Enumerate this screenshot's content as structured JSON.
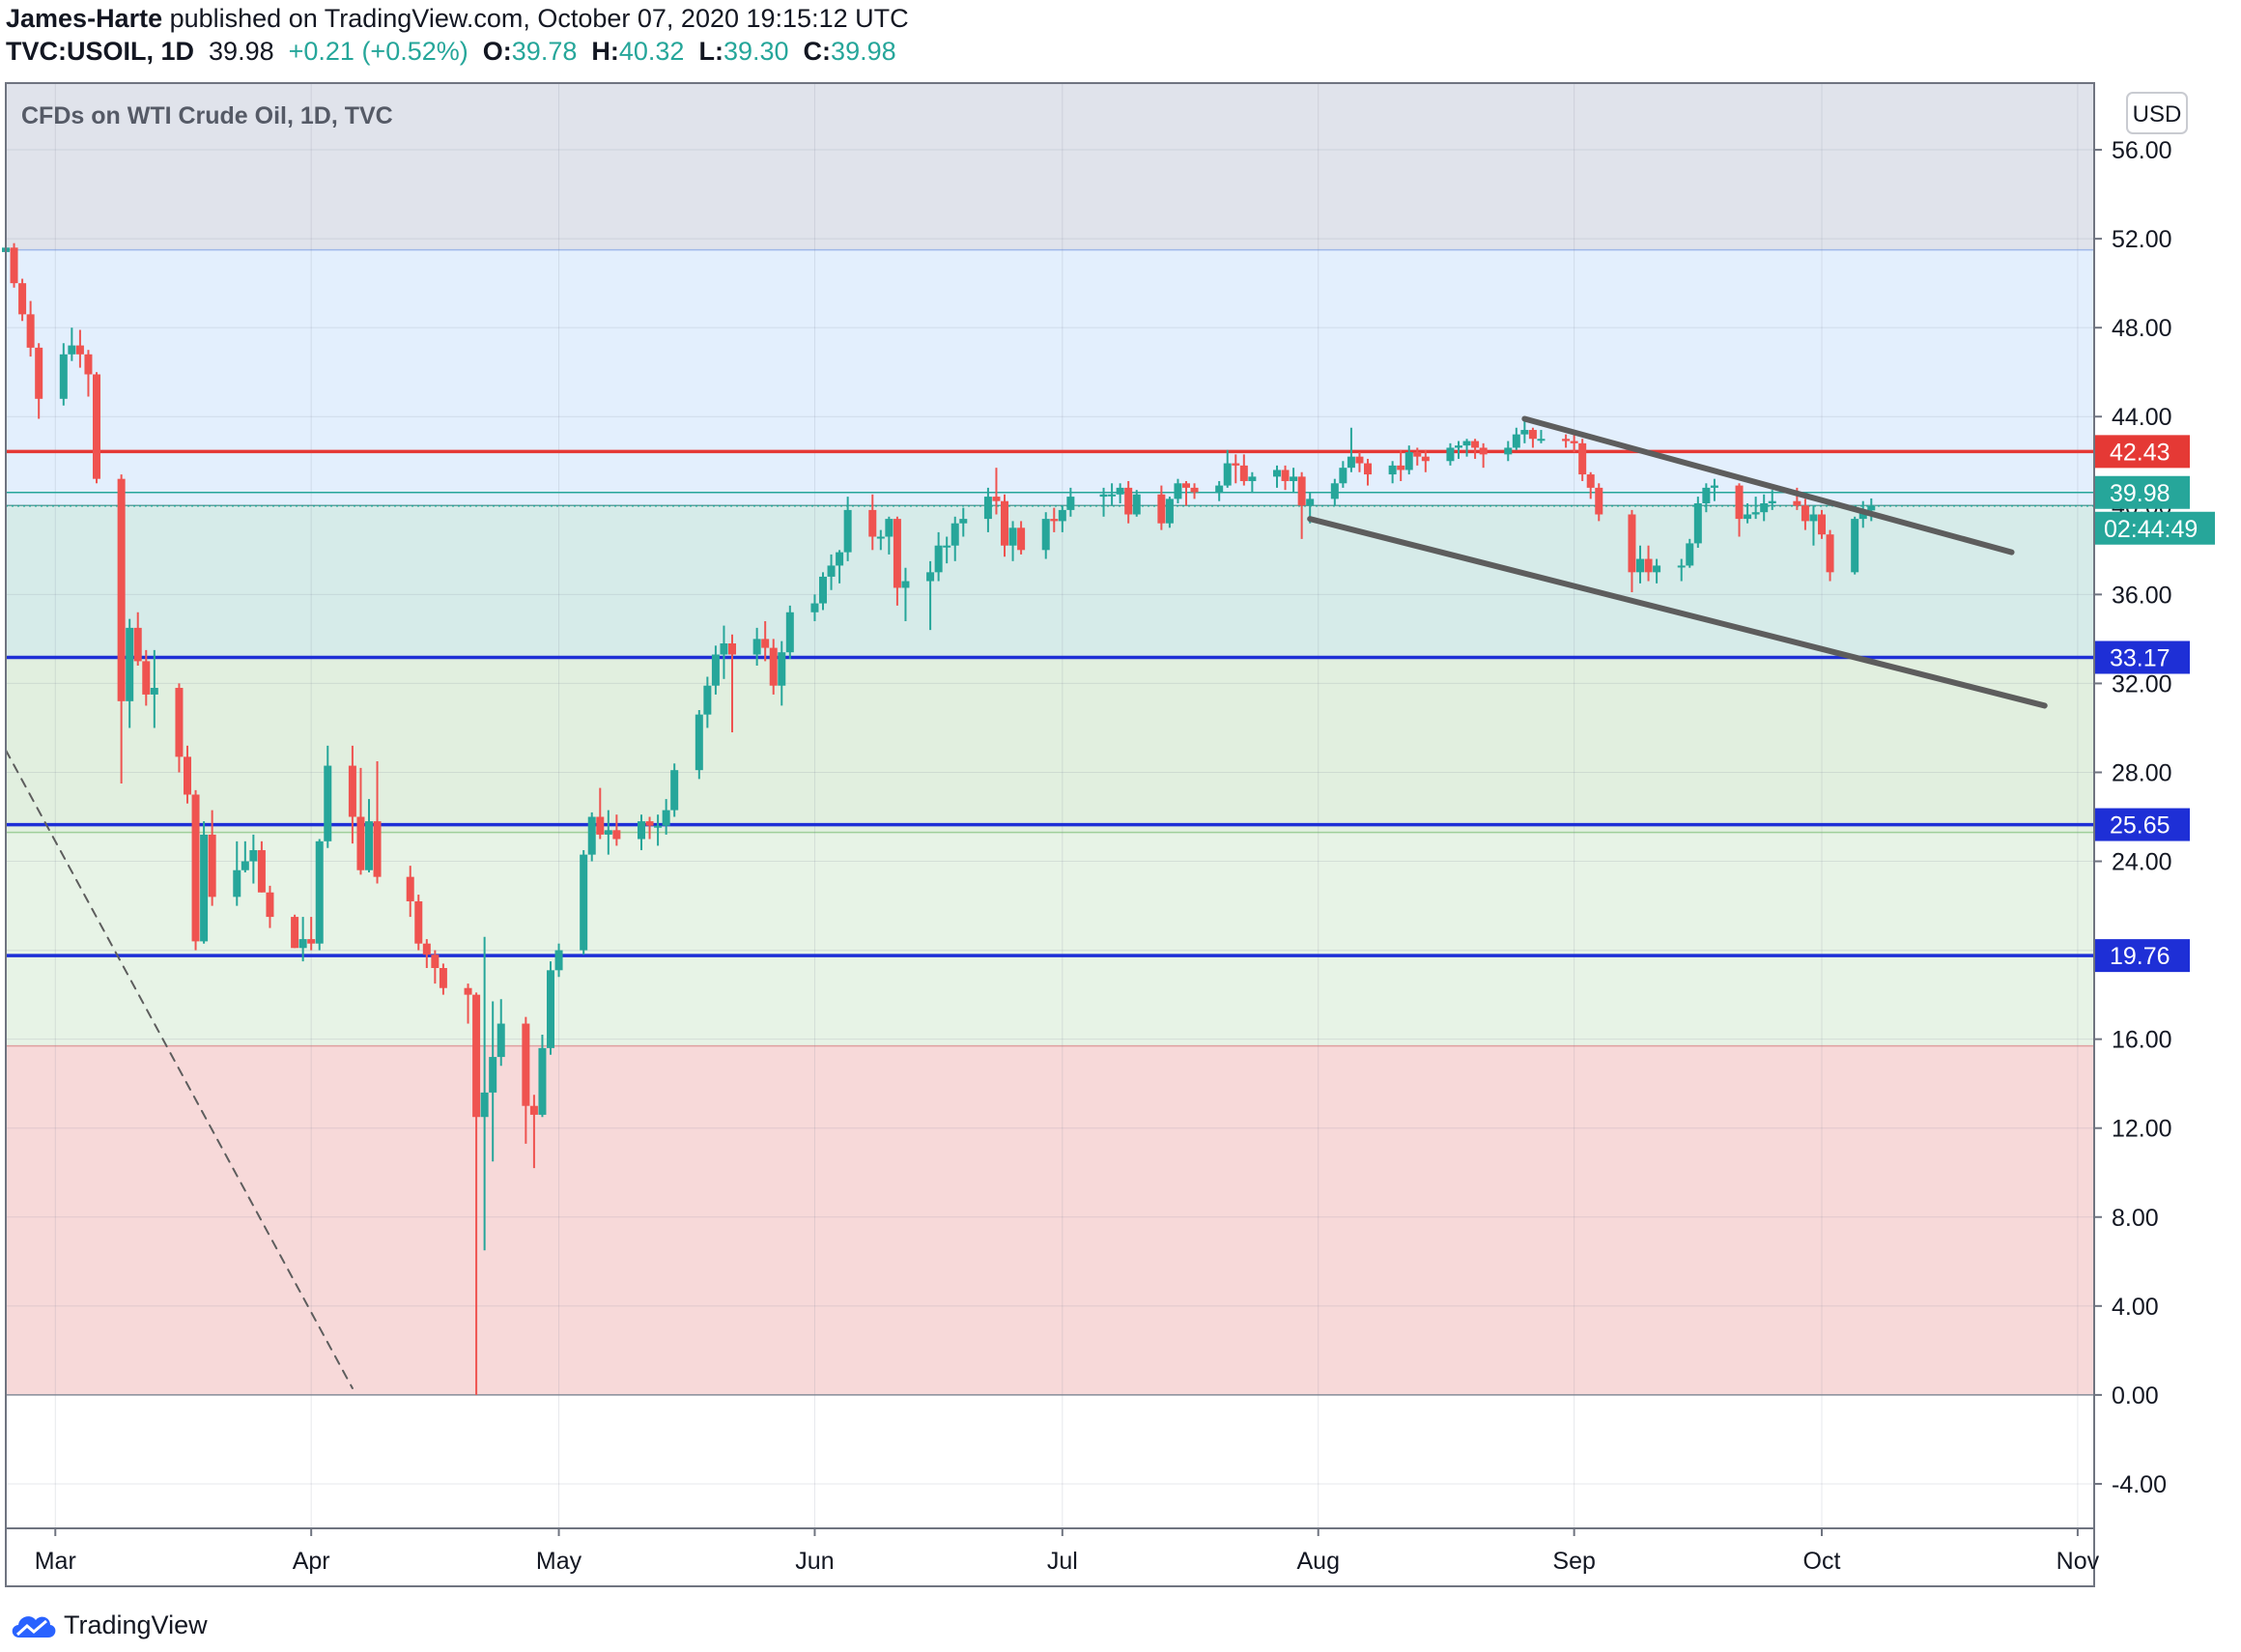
{
  "header": {
    "author": "James-Harte",
    "published_text": "published on TradingView.com, October 07, 2020 19:15:12 UTC",
    "symbol": "TVC:USOIL, 1D",
    "last": "39.98",
    "change": "+0.21 (+0.52%)",
    "o_label": "O:",
    "o_value": "39.78",
    "h_label": "H:",
    "h_value": "40.32",
    "l_label": "L:",
    "l_value": "39.30",
    "c_label": "C:",
    "c_value": "39.98"
  },
  "footer": {
    "brand": "TradingView"
  },
  "colors": {
    "up": "#26a69a",
    "down": "#ef5350",
    "support_line": "#1e2fd6",
    "resistance_line": "#e53935",
    "trendline": "#5d5d5d"
  },
  "chart_data": {
    "type": "candlestick",
    "title": "CFDs on WTI Crude Oil, 1D, TVC",
    "currency": "USD",
    "ylim": [
      -6,
      59
    ],
    "yticks": [
      "56.00",
      "52.00",
      "48.00",
      "44.00",
      "40.00",
      "36.00",
      "32.00",
      "28.00",
      "24.00",
      "20.00",
      "16.00",
      "12.00",
      "8.00",
      "4.00",
      "0.00",
      "-4.00"
    ],
    "xlim": [
      "2020-02-24",
      "2020-11-03"
    ],
    "xticks": [
      {
        "label": "Mar",
        "date": "2020-03-01"
      },
      {
        "label": "Apr",
        "date": "2020-04-01"
      },
      {
        "label": "May",
        "date": "2020-05-01"
      },
      {
        "label": "Jun",
        "date": "2020-06-01"
      },
      {
        "label": "Jul",
        "date": "2020-07-01"
      },
      {
        "label": "Aug",
        "date": "2020-08-01"
      },
      {
        "label": "Sep",
        "date": "2020-09-01"
      },
      {
        "label": "Oct",
        "date": "2020-10-01"
      },
      {
        "label": "Nov",
        "date": "2020-11-01"
      }
    ],
    "zones": [
      {
        "from": 51.5,
        "to": 59,
        "color": "#e0e3eb"
      },
      {
        "from": 40.0,
        "to": 51.5,
        "color": "#e3effd"
      },
      {
        "from": 33.2,
        "to": 40.0,
        "color": "#d6ebe9"
      },
      {
        "from": 25.3,
        "to": 33.2,
        "color": "#e1efdf"
      },
      {
        "from": 15.7,
        "to": 25.3,
        "color": "#e7f3e6"
      },
      {
        "from": 0,
        "to": 15.7,
        "color": "#f7d9d9"
      }
    ],
    "horizontal_levels": [
      {
        "price": 42.43,
        "label": "42.43",
        "color": "#e53935"
      },
      {
        "price": 33.17,
        "label": "33.17",
        "color": "#1e2fd6"
      },
      {
        "price": 25.65,
        "label": "25.65",
        "color": "#1e2fd6"
      },
      {
        "price": 19.76,
        "label": "19.76",
        "color": "#1e2fd6"
      }
    ],
    "last_price": {
      "price": 39.98,
      "label": "39.98",
      "countdown": "02:44:49"
    },
    "trendlines": [
      {
        "from": {
          "date": "2020-08-26",
          "price": 43.9
        },
        "to": {
          "date": "2020-10-24",
          "price": 37.9
        },
        "style": "solid"
      },
      {
        "from": {
          "date": "2020-07-31",
          "price": 39.4
        },
        "to": {
          "date": "2020-10-28",
          "price": 31.0
        },
        "style": "solid"
      },
      {
        "from": {
          "date": "2020-02-24",
          "price": 29.0
        },
        "to": {
          "date": "2020-04-06",
          "price": 0.3
        },
        "style": "dashed"
      }
    ],
    "candles": [
      [
        "2020-02-24",
        51.4,
        52.5,
        50.6,
        51.6
      ],
      [
        "2020-02-25",
        51.6,
        51.8,
        49.8,
        50.0
      ],
      [
        "2020-02-26",
        50.0,
        50.2,
        48.3,
        48.6
      ],
      [
        "2020-02-27",
        48.6,
        49.2,
        46.7,
        47.1
      ],
      [
        "2020-02-28",
        47.1,
        47.3,
        43.9,
        44.8
      ],
      [
        "2020-03-02",
        44.8,
        47.3,
        44.5,
        46.8
      ],
      [
        "2020-03-03",
        46.8,
        48.0,
        46.5,
        47.2
      ],
      [
        "2020-03-04",
        47.2,
        47.9,
        46.2,
        46.8
      ],
      [
        "2020-03-05",
        46.8,
        47.0,
        44.9,
        45.9
      ],
      [
        "2020-03-06",
        45.9,
        46.0,
        41.0,
        41.2
      ],
      [
        "2020-03-09",
        41.2,
        41.4,
        27.5,
        31.2
      ],
      [
        "2020-03-10",
        31.2,
        34.9,
        30.0,
        34.5
      ],
      [
        "2020-03-11",
        34.5,
        35.2,
        32.8,
        33.0
      ],
      [
        "2020-03-12",
        33.0,
        33.5,
        31.0,
        31.5
      ],
      [
        "2020-03-13",
        31.5,
        33.5,
        30.0,
        31.8
      ],
      [
        "2020-03-16",
        31.8,
        32.0,
        28.0,
        28.7
      ],
      [
        "2020-03-17",
        28.7,
        29.2,
        26.6,
        27.0
      ],
      [
        "2020-03-18",
        27.0,
        27.2,
        20.0,
        20.4
      ],
      [
        "2020-03-19",
        20.4,
        25.8,
        20.3,
        25.2
      ],
      [
        "2020-03-20",
        25.2,
        26.3,
        22.0,
        22.4
      ],
      [
        "2020-03-23",
        22.4,
        24.9,
        22.0,
        23.6
      ],
      [
        "2020-03-24",
        23.6,
        24.9,
        23.5,
        24.0
      ],
      [
        "2020-03-25",
        24.0,
        25.2,
        23.0,
        24.5
      ],
      [
        "2020-03-26",
        24.5,
        24.9,
        22.6,
        22.6
      ],
      [
        "2020-03-27",
        22.6,
        22.9,
        21.0,
        21.5
      ],
      [
        "2020-03-30",
        21.5,
        21.6,
        20.1,
        20.1
      ],
      [
        "2020-03-31",
        20.1,
        21.5,
        19.5,
        20.5
      ],
      [
        "2020-04-01",
        20.5,
        21.5,
        20.0,
        20.3
      ],
      [
        "2020-04-02",
        20.3,
        25.0,
        20.0,
        24.9
      ],
      [
        "2020-04-03",
        24.9,
        29.2,
        24.6,
        28.3
      ],
      [
        "2020-04-06",
        28.3,
        29.2,
        24.8,
        26.0
      ],
      [
        "2020-04-07",
        26.0,
        28.2,
        23.4,
        23.6
      ],
      [
        "2020-04-08",
        23.6,
        26.8,
        23.5,
        25.8
      ],
      [
        "2020-04-09",
        25.8,
        28.5,
        23.0,
        23.3
      ],
      [
        "2020-04-13",
        23.3,
        23.8,
        21.5,
        22.2
      ],
      [
        "2020-04-14",
        22.2,
        22.5,
        20.0,
        20.3
      ],
      [
        "2020-04-15",
        20.3,
        20.5,
        19.2,
        19.8
      ],
      [
        "2020-04-16",
        19.8,
        20.0,
        18.5,
        19.2
      ],
      [
        "2020-04-17",
        19.2,
        19.4,
        18.0,
        18.3
      ],
      [
        "2020-04-20",
        18.3,
        18.5,
        16.7,
        18.0
      ],
      [
        "2020-04-21",
        18.0,
        18.1,
        0.0,
        12.5
      ],
      [
        "2020-04-22",
        12.5,
        20.6,
        6.5,
        13.6
      ],
      [
        "2020-04-23",
        13.6,
        17.7,
        10.5,
        15.2
      ],
      [
        "2020-04-24",
        15.2,
        17.8,
        14.8,
        16.7
      ],
      [
        "2020-04-27",
        16.7,
        17.0,
        11.3,
        13.0
      ],
      [
        "2020-04-28",
        13.0,
        13.5,
        10.2,
        12.6
      ],
      [
        "2020-04-29",
        12.6,
        16.2,
        12.5,
        15.6
      ],
      [
        "2020-04-30",
        15.6,
        19.5,
        15.3,
        19.1
      ],
      [
        "2020-05-01",
        19.1,
        20.3,
        18.8,
        20.0
      ],
      [
        "2020-05-04",
        20.0,
        24.5,
        19.8,
        24.3
      ],
      [
        "2020-05-05",
        24.3,
        26.2,
        24.0,
        26.0
      ],
      [
        "2020-05-06",
        26.0,
        27.3,
        25.0,
        25.2
      ],
      [
        "2020-05-07",
        25.2,
        26.3,
        24.3,
        25.4
      ],
      [
        "2020-05-08",
        25.4,
        26.1,
        24.7,
        25.0
      ],
      [
        "2020-05-11",
        25.0,
        26.1,
        24.5,
        25.8
      ],
      [
        "2020-05-12",
        25.8,
        26.0,
        25.0,
        25.6
      ],
      [
        "2020-05-13",
        25.6,
        26.1,
        24.7,
        25.6
      ],
      [
        "2020-05-14",
        25.6,
        26.8,
        25.2,
        26.3
      ],
      [
        "2020-05-15",
        26.3,
        28.4,
        26.0,
        28.1
      ],
      [
        "2020-05-18",
        28.1,
        30.8,
        27.7,
        30.6
      ],
      [
        "2020-05-19",
        30.6,
        32.3,
        30.0,
        31.9
      ],
      [
        "2020-05-20",
        31.9,
        33.7,
        31.5,
        33.3
      ],
      [
        "2020-05-21",
        33.3,
        34.6,
        32.2,
        33.8
      ],
      [
        "2020-05-22",
        33.8,
        34.2,
        29.8,
        33.3
      ],
      [
        "2020-05-25",
        33.3,
        34.5,
        32.8,
        34.0
      ],
      [
        "2020-05-26",
        34.0,
        34.8,
        33.0,
        33.6
      ],
      [
        "2020-05-27",
        33.6,
        34.0,
        31.5,
        31.9
      ],
      [
        "2020-05-28",
        31.9,
        33.9,
        31.0,
        33.4
      ],
      [
        "2020-05-29",
        33.4,
        35.5,
        33.1,
        35.2
      ],
      [
        "2020-06-01",
        35.2,
        36.0,
        34.8,
        35.6
      ],
      [
        "2020-06-02",
        35.6,
        37.0,
        35.3,
        36.8
      ],
      [
        "2020-06-03",
        36.8,
        37.8,
        36.2,
        37.3
      ],
      [
        "2020-06-04",
        37.3,
        38.0,
        36.5,
        37.9
      ],
      [
        "2020-06-05",
        37.9,
        40.4,
        37.5,
        39.8
      ],
      [
        "2020-06-08",
        39.8,
        40.5,
        38.0,
        38.6
      ],
      [
        "2020-06-09",
        38.6,
        38.9,
        38.0,
        38.6
      ],
      [
        "2020-06-10",
        38.6,
        39.5,
        37.8,
        39.4
      ],
      [
        "2020-06-11",
        39.4,
        39.5,
        35.5,
        36.3
      ],
      [
        "2020-06-12",
        36.3,
        37.2,
        34.8,
        36.6
      ],
      [
        "2020-06-15",
        36.6,
        37.5,
        34.4,
        37.0
      ],
      [
        "2020-06-16",
        37.0,
        38.8,
        36.6,
        38.2
      ],
      [
        "2020-06-17",
        38.2,
        38.6,
        37.4,
        38.2
      ],
      [
        "2020-06-18",
        38.2,
        39.5,
        37.5,
        39.2
      ],
      [
        "2020-06-19",
        39.2,
        39.9,
        38.6,
        39.4
      ],
      [
        "2020-06-22",
        39.4,
        40.8,
        38.8,
        40.4
      ],
      [
        "2020-06-23",
        40.4,
        41.7,
        39.6,
        40.2
      ],
      [
        "2020-06-24",
        40.2,
        40.5,
        37.7,
        38.2
      ],
      [
        "2020-06-25",
        38.2,
        39.3,
        37.5,
        39.0
      ],
      [
        "2020-06-26",
        39.0,
        39.3,
        37.8,
        38.0
      ],
      [
        "2020-06-29",
        38.0,
        39.7,
        37.6,
        39.4
      ],
      [
        "2020-06-30",
        39.4,
        39.9,
        38.8,
        39.3
      ],
      [
        "2020-07-01",
        39.3,
        40.0,
        38.8,
        39.8
      ],
      [
        "2020-07-02",
        39.8,
        40.8,
        39.5,
        40.4
      ],
      [
        "2020-07-06",
        40.4,
        40.8,
        39.5,
        40.5
      ],
      [
        "2020-07-07",
        40.5,
        41.0,
        40.0,
        40.5
      ],
      [
        "2020-07-08",
        40.5,
        41.0,
        40.1,
        40.8
      ],
      [
        "2020-07-09",
        40.8,
        41.1,
        39.2,
        39.6
      ],
      [
        "2020-07-10",
        39.6,
        40.7,
        39.5,
        40.5
      ],
      [
        "2020-07-13",
        40.5,
        40.9,
        38.9,
        39.2
      ],
      [
        "2020-07-14",
        39.2,
        40.4,
        39.0,
        40.3
      ],
      [
        "2020-07-15",
        40.3,
        41.2,
        40.1,
        41.0
      ],
      [
        "2020-07-16",
        41.0,
        41.1,
        40.0,
        40.8
      ],
      [
        "2020-07-17",
        40.8,
        41.0,
        40.3,
        40.6
      ],
      [
        "2020-07-20",
        40.6,
        41.1,
        40.2,
        40.9
      ],
      [
        "2020-07-21",
        40.9,
        42.5,
        40.8,
        41.9
      ],
      [
        "2020-07-22",
        41.9,
        42.3,
        41.0,
        41.8
      ],
      [
        "2020-07-23",
        41.8,
        42.3,
        40.9,
        41.1
      ],
      [
        "2020-07-24",
        41.1,
        41.5,
        40.6,
        41.3
      ],
      [
        "2020-07-27",
        41.3,
        41.8,
        40.8,
        41.6
      ],
      [
        "2020-07-28",
        41.6,
        41.8,
        40.7,
        41.1
      ],
      [
        "2020-07-29",
        41.1,
        41.7,
        40.6,
        41.3
      ],
      [
        "2020-07-30",
        41.3,
        41.5,
        38.5,
        40.0
      ],
      [
        "2020-07-31",
        40.0,
        40.6,
        39.2,
        40.3
      ],
      [
        "2020-08-03",
        40.3,
        41.2,
        40.0,
        41.0
      ],
      [
        "2020-08-04",
        41.0,
        42.0,
        40.8,
        41.7
      ],
      [
        "2020-08-05",
        41.7,
        43.5,
        41.5,
        42.2
      ],
      [
        "2020-08-06",
        42.2,
        42.4,
        41.5,
        41.9
      ],
      [
        "2020-08-07",
        41.9,
        42.1,
        40.9,
        41.4
      ],
      [
        "2020-08-10",
        41.4,
        42.0,
        41.0,
        41.8
      ],
      [
        "2020-08-11",
        41.8,
        42.5,
        41.1,
        41.6
      ],
      [
        "2020-08-12",
        41.6,
        42.7,
        41.4,
        42.4
      ],
      [
        "2020-08-13",
        42.4,
        42.6,
        41.8,
        42.2
      ],
      [
        "2020-08-14",
        42.2,
        42.5,
        41.5,
        42.0
      ],
      [
        "2020-08-17",
        42.0,
        42.8,
        41.8,
        42.6
      ],
      [
        "2020-08-18",
        42.6,
        42.9,
        42.1,
        42.7
      ],
      [
        "2020-08-19",
        42.7,
        43.0,
        42.2,
        42.9
      ],
      [
        "2020-08-20",
        42.9,
        43.0,
        42.1,
        42.6
      ],
      [
        "2020-08-21",
        42.6,
        42.8,
        41.7,
        42.3
      ],
      [
        "2020-08-24",
        42.3,
        42.9,
        42.0,
        42.6
      ],
      [
        "2020-08-25",
        42.6,
        43.5,
        42.5,
        43.2
      ],
      [
        "2020-08-26",
        43.2,
        43.8,
        42.8,
        43.4
      ],
      [
        "2020-08-27",
        43.4,
        43.5,
        42.6,
        43.0
      ],
      [
        "2020-08-28",
        43.0,
        43.4,
        42.8,
        43.0
      ],
      [
        "2020-08-31",
        43.0,
        43.2,
        42.6,
        42.9
      ],
      [
        "2020-09-01",
        42.9,
        43.2,
        42.4,
        42.8
      ],
      [
        "2020-09-02",
        42.8,
        43.0,
        41.1,
        41.4
      ],
      [
        "2020-09-03",
        41.4,
        41.5,
        40.3,
        40.8
      ],
      [
        "2020-09-04",
        40.8,
        41.0,
        39.3,
        39.6
      ],
      [
        "2020-09-08",
        39.6,
        39.8,
        36.1,
        37.0
      ],
      [
        "2020-09-09",
        37.0,
        38.2,
        36.5,
        37.6
      ],
      [
        "2020-09-10",
        37.6,
        38.2,
        36.6,
        37.0
      ],
      [
        "2020-09-11",
        37.0,
        37.6,
        36.5,
        37.3
      ],
      [
        "2020-09-14",
        37.3,
        37.6,
        36.6,
        37.3
      ],
      [
        "2020-09-15",
        37.3,
        38.5,
        37.2,
        38.3
      ],
      [
        "2020-09-16",
        38.3,
        40.4,
        38.1,
        40.1
      ],
      [
        "2020-09-17",
        40.1,
        41.0,
        39.7,
        40.8
      ],
      [
        "2020-09-18",
        40.8,
        41.2,
        40.2,
        40.9
      ],
      [
        "2020-09-21",
        40.9,
        41.0,
        38.6,
        39.4
      ],
      [
        "2020-09-22",
        39.4,
        40.1,
        39.2,
        39.6
      ],
      [
        "2020-09-23",
        39.6,
        40.4,
        39.4,
        39.7
      ],
      [
        "2020-09-24",
        39.7,
        40.5,
        39.3,
        40.1
      ],
      [
        "2020-09-25",
        40.1,
        40.7,
        39.8,
        40.2
      ],
      [
        "2020-09-28",
        40.2,
        40.8,
        39.8,
        40.0
      ],
      [
        "2020-09-29",
        40.0,
        40.3,
        38.9,
        39.3
      ],
      [
        "2020-09-30",
        39.3,
        40.0,
        38.2,
        39.6
      ],
      [
        "2020-10-01",
        39.6,
        39.8,
        38.5,
        38.7
      ],
      [
        "2020-10-02",
        38.7,
        38.9,
        36.6,
        37.0
      ],
      [
        "2020-10-05",
        37.0,
        39.5,
        36.9,
        39.4
      ],
      [
        "2020-10-06",
        39.4,
        40.2,
        39.0,
        39.8
      ],
      [
        "2020-10-07",
        39.78,
        40.32,
        39.3,
        39.98
      ]
    ]
  }
}
